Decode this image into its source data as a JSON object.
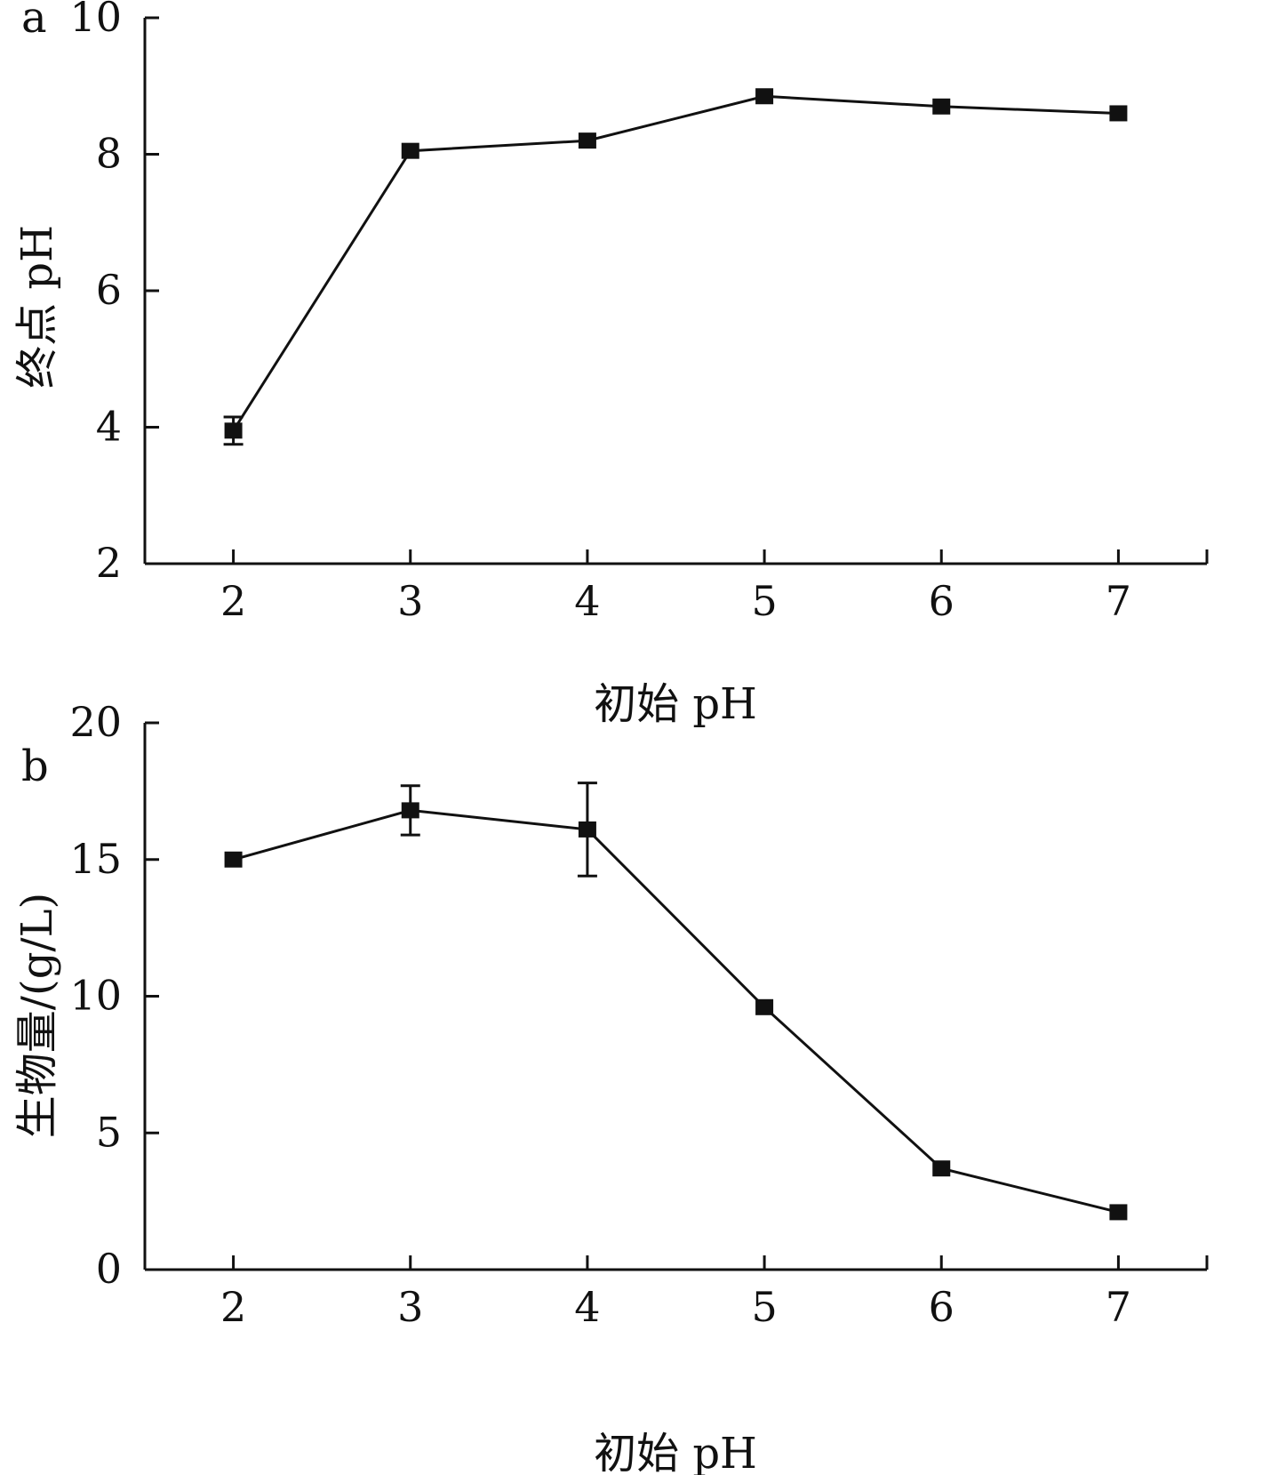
{
  "colors": {
    "ink": "#111111",
    "background": "#ffffff"
  },
  "chart_data": [
    {
      "type": "line",
      "panel_label": "a",
      "marker": "filled-square",
      "xlabel": "初始 pH",
      "ylabel": "终点 pH",
      "x": [
        2,
        3,
        4,
        5,
        6,
        7
      ],
      "x_tick_labels": [
        "2",
        "3",
        "4",
        "5",
        "6",
        "7"
      ],
      "xlim": [
        1.5,
        7.5
      ],
      "ylim": [
        2,
        10
      ],
      "y_ticks": [
        2,
        4,
        6,
        8,
        10
      ],
      "y_tick_labels": [
        "2",
        "4",
        "6",
        "8",
        "10"
      ],
      "grid": false,
      "series": [
        {
          "values": [
            3.95,
            8.05,
            8.2,
            8.85,
            8.7,
            8.6
          ],
          "errors": [
            0.2,
            0,
            0,
            0,
            0,
            0
          ]
        }
      ]
    },
    {
      "type": "line",
      "panel_label": "b",
      "marker": "filled-square",
      "xlabel": "初始 pH",
      "ylabel": "生物量/(g/L)",
      "x": [
        2,
        3,
        4,
        5,
        6,
        7
      ],
      "x_tick_labels": [
        "2",
        "3",
        "4",
        "5",
        "6",
        "7"
      ],
      "xlim": [
        1.5,
        7.5
      ],
      "ylim": [
        0,
        20
      ],
      "y_ticks": [
        0,
        5,
        10,
        15,
        20
      ],
      "y_tick_labels": [
        "0",
        "5",
        "10",
        "15",
        "20"
      ],
      "grid": false,
      "series": [
        {
          "values": [
            15.0,
            16.8,
            16.1,
            9.6,
            3.7,
            2.1
          ],
          "errors": [
            0,
            0.9,
            1.7,
            0,
            0,
            0
          ]
        }
      ]
    }
  ]
}
